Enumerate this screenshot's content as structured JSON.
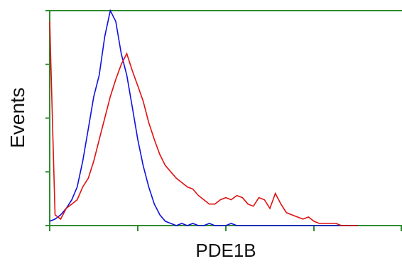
{
  "chart_data": {
    "type": "line",
    "xlabel": "PDE1B",
    "ylabel": "Events",
    "x": [
      1,
      1.15,
      1.33,
      1.54,
      1.78,
      2.05,
      2.37,
      2.74,
      3.16,
      3.65,
      4.22,
      4.87,
      5.62,
      6.49,
      7.5,
      8.66,
      10,
      11.5,
      13.3,
      15.4,
      17.8,
      20.5,
      23.7,
      27.4,
      31.6,
      36.5,
      42.2,
      48.7,
      56.2,
      64.9,
      75,
      86.6,
      100,
      115,
      133,
      154,
      178,
      205,
      237,
      274,
      316,
      365,
      422,
      487,
      562,
      649,
      750,
      866,
      1000,
      1150,
      1330,
      1540,
      1780,
      2050,
      2370,
      2740,
      3160
    ],
    "series": [
      {
        "color": "#1010e0",
        "values": [
          2,
          3,
          5,
          8,
          12,
          18,
          30,
          45,
          60,
          70,
          88,
          100,
          95,
          80,
          70,
          55,
          40,
          28,
          18,
          10,
          5,
          2,
          1,
          0,
          1,
          0,
          1,
          0,
          0,
          1,
          0,
          0,
          0,
          1,
          0,
          0,
          0,
          0,
          0,
          0,
          0,
          0,
          0,
          0,
          0,
          0,
          0,
          0,
          0,
          0,
          0,
          0,
          0,
          0,
          0,
          0,
          0
        ]
      },
      {
        "color": "#e01010",
        "values": [
          95,
          5,
          3,
          8,
          10,
          12,
          18,
          22,
          30,
          40,
          50,
          60,
          68,
          75,
          80,
          72,
          65,
          58,
          48,
          40,
          33,
          28,
          25,
          22,
          20,
          18,
          17,
          14,
          12,
          10,
          10,
          12,
          13,
          12,
          14,
          13,
          10,
          9,
          13,
          12,
          8,
          15,
          10,
          6,
          5,
          4,
          3,
          4,
          2,
          1,
          1,
          1,
          1,
          0,
          0,
          0,
          0
        ]
      }
    ],
    "xlim": [
      1,
      10000
    ],
    "ylim": [
      0,
      100
    ],
    "log_x": true,
    "xticks": [
      1,
      10,
      100,
      1000,
      10000
    ],
    "yticks": [
      0,
      25,
      50,
      75,
      100
    ],
    "axis_color": "#2e8b2e"
  }
}
